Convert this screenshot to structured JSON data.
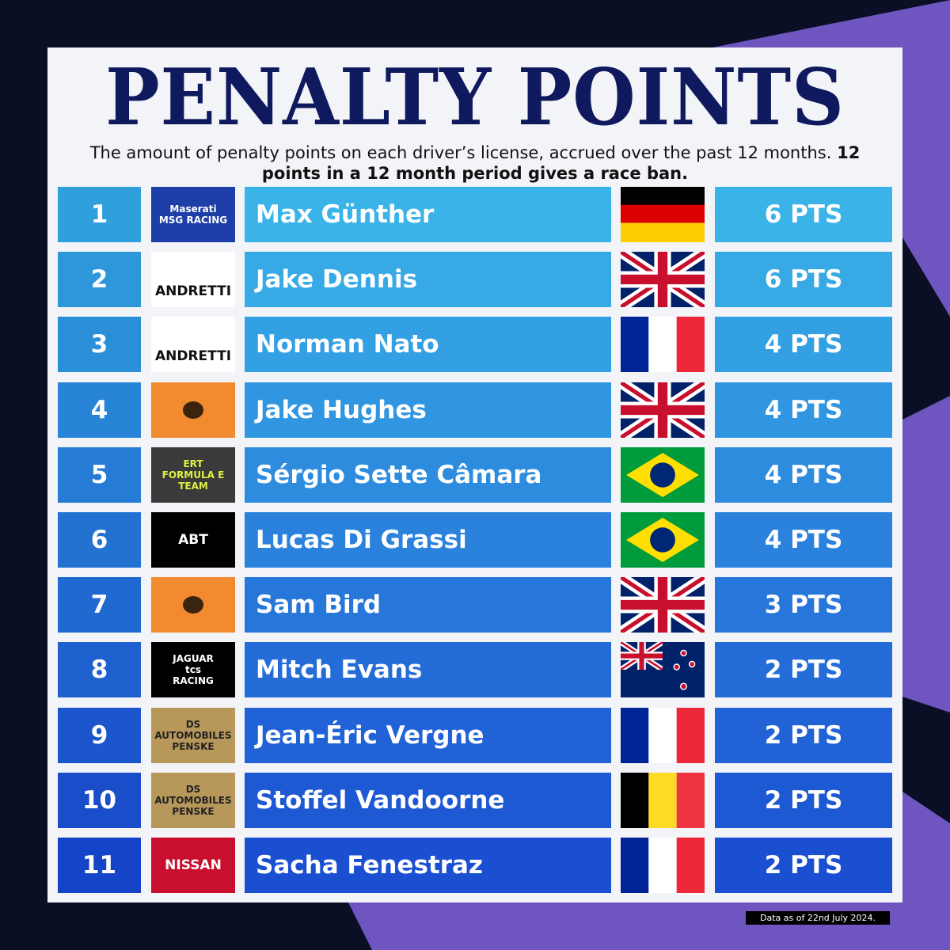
{
  "title": "PENALTY POINTS",
  "subtitle": {
    "text": "The amount of penalty points on each driver’s license, accrued over the past 12 months.",
    "bold": "12 points in a 12 month period gives a race ban."
  },
  "rows": [
    {
      "rank": "1",
      "team": [
        "Maserati",
        "MSG RACING"
      ],
      "driver": "Max Günther",
      "points": "6 PTS"
    },
    {
      "rank": "2",
      "team": [
        "ANDRETTI"
      ],
      "driver": "Jake Dennis",
      "points": "6 PTS"
    },
    {
      "rank": "3",
      "team": [
        "ANDRETTI"
      ],
      "driver": "Norman Nato",
      "points": "4 PTS"
    },
    {
      "rank": "4",
      "team": [],
      "driver": "Jake Hughes",
      "points": "4 PTS"
    },
    {
      "rank": "5",
      "team": [
        "ERT",
        "FORMULA E TEAM"
      ],
      "driver": "Sérgio Sette Câmara",
      "points": "4 PTS"
    },
    {
      "rank": "6",
      "team": [
        "ABT"
      ],
      "driver": "Lucas Di Grassi",
      "points": "4 PTS"
    },
    {
      "rank": "7",
      "team": [],
      "driver": "Sam Bird",
      "points": "3 PTS"
    },
    {
      "rank": "8",
      "team": [
        "JAGUAR",
        "tcs",
        "RACING"
      ],
      "driver": "Mitch Evans",
      "points": "2 PTS"
    },
    {
      "rank": "9",
      "team": [
        "DS AUTOMOBILES",
        "PENSKE"
      ],
      "driver": "Jean-Éric Vergne",
      "points": "2 PTS"
    },
    {
      "rank": "10",
      "team": [
        "DS AUTOMOBILES",
        "PENSKE"
      ],
      "driver": "Stoffel Vandoorne",
      "points": "2 PTS"
    },
    {
      "rank": "11",
      "team": [
        "NISSAN"
      ],
      "driver": "Sacha Fenestraz",
      "points": "2 PTS"
    }
  ],
  "footnote": "Data as of 22nd July 2024."
}
